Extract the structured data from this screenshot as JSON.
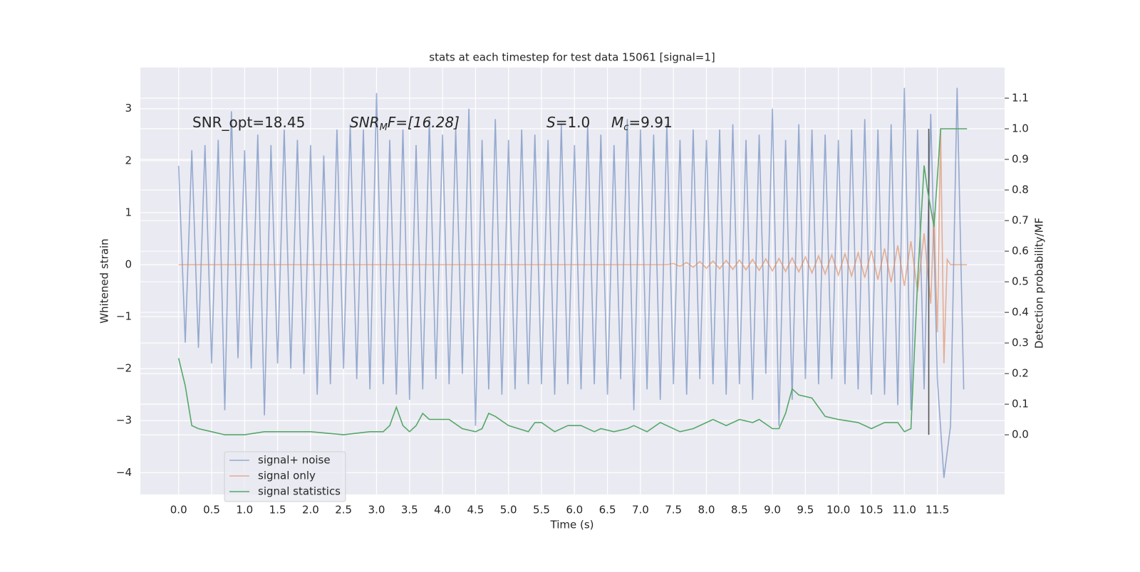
{
  "chart_data": {
    "type": "line",
    "title": "stats at each timestep for test data 15061 [signal=1]",
    "xlabel": "Time (s)",
    "ylabel": "Whitened strain",
    "y2label": "Detection probability/MF",
    "annotations": [
      [
        "SNR_opt=18.45"
      ],
      [
        "SNR",
        "M",
        "F=[16.28]"
      ],
      [
        "S",
        "=1.0"
      ],
      [
        "M",
        "c",
        "=9.91"
      ]
    ],
    "xlim": [
      -0.58,
      12.52
    ],
    "ylim": [
      -4.42,
      3.79
    ],
    "y2lim": [
      -0.195,
      1.2
    ],
    "xticks": [
      {
        "value": 0,
        "label": "0.0"
      },
      0.5,
      {
        "value": 1,
        "label": "1.0"
      },
      1.5,
      {
        "value": 2,
        "label": "2.0"
      },
      2.5,
      {
        "value": 3,
        "label": "3.0"
      },
      3.5,
      {
        "value": 4,
        "label": "4.0"
      },
      4.5,
      {
        "value": 5,
        "label": "5.0"
      },
      5.5,
      {
        "value": 6,
        "label": "6.0"
      },
      6.5,
      {
        "value": 7,
        "label": "7.0"
      },
      7.5,
      {
        "value": 8,
        "label": "8.0"
      },
      8.5,
      {
        "value": 9,
        "label": "9.0"
      },
      9.5,
      {
        "value": 10,
        "label": "10.0"
      },
      10.5,
      {
        "value": 11,
        "label": "11.0"
      },
      11.5
    ],
    "yticks": [
      {
        "value": -4,
        "label": "−4"
      },
      {
        "value": -3,
        "label": "−3"
      },
      {
        "value": -2,
        "label": "−2"
      },
      {
        "value": -1,
        "label": "−1"
      },
      0,
      1,
      2,
      3
    ],
    "y2ticks": [
      {
        "value": 0,
        "label": "0.0"
      },
      0.1,
      0.2,
      0.3,
      0.4,
      0.5,
      0.6,
      0.7,
      0.8,
      0.9,
      {
        "value": 1,
        "label": "1.0"
      },
      1.1
    ],
    "grid": true,
    "legend": "lower left",
    "series": [
      {
        "name": "signal+ noise",
        "color": "#4c72b0",
        "alpha": 0.55,
        "x": [
          0.0,
          0.1,
          0.2,
          0.3,
          0.4,
          0.5,
          0.6,
          0.7,
          0.8,
          0.9,
          1.0,
          1.1,
          1.2,
          1.3,
          1.4,
          1.5,
          1.6,
          1.7,
          1.8,
          1.9,
          2.0,
          2.1,
          2.2,
          2.3,
          2.4,
          2.5,
          2.6,
          2.7,
          2.8,
          2.9,
          3.0,
          3.1,
          3.2,
          3.3,
          3.4,
          3.5,
          3.6,
          3.7,
          3.8,
          3.9,
          4.0,
          4.1,
          4.2,
          4.3,
          4.4,
          4.5,
          4.6,
          4.7,
          4.8,
          4.9,
          5.0,
          5.1,
          5.2,
          5.3,
          5.4,
          5.5,
          5.6,
          5.7,
          5.8,
          5.9,
          6.0,
          6.1,
          6.2,
          6.3,
          6.4,
          6.5,
          6.6,
          6.7,
          6.8,
          6.9,
          7.0,
          7.1,
          7.2,
          7.3,
          7.4,
          7.5,
          7.6,
          7.7,
          7.8,
          7.9,
          8.0,
          8.1,
          8.2,
          8.3,
          8.4,
          8.5,
          8.6,
          8.7,
          8.8,
          8.9,
          9.0,
          9.1,
          9.2,
          9.3,
          9.4,
          9.5,
          9.6,
          9.7,
          9.8,
          9.9,
          10.0,
          10.1,
          10.2,
          10.3,
          10.4,
          10.5,
          10.6,
          10.7,
          10.8,
          10.9,
          11.0,
          11.1,
          11.2,
          11.3,
          11.4,
          11.5,
          11.6,
          11.7,
          11.8,
          11.9
        ],
        "values": [
          1.9,
          -1.5,
          2.2,
          -1.6,
          2.3,
          -1.9,
          2.4,
          -2.8,
          2.95,
          -1.8,
          2.2,
          -2.0,
          2.5,
          -2.9,
          2.3,
          -1.9,
          2.6,
          -2.0,
          2.4,
          -2.1,
          2.3,
          -2.5,
          2.1,
          -2.3,
          2.6,
          -2.0,
          2.7,
          -2.2,
          2.6,
          -2.4,
          3.3,
          -2.3,
          2.4,
          -2.5,
          2.6,
          -2.6,
          2.3,
          -2.4,
          2.8,
          -2.2,
          2.5,
          -2.3,
          2.6,
          -2.1,
          3.0,
          -3.1,
          2.4,
          -2.4,
          2.8,
          -2.5,
          2.4,
          -2.4,
          2.6,
          -2.3,
          2.5,
          -2.3,
          2.4,
          -2.5,
          2.7,
          -2.3,
          2.3,
          -2.4,
          2.7,
          -2.3,
          2.5,
          -2.5,
          2.3,
          -2.2,
          2.8,
          -2.8,
          2.6,
          -2.4,
          2.5,
          -2.6,
          2.7,
          -2.3,
          2.4,
          -2.5,
          2.6,
          -2.2,
          2.4,
          -2.3,
          2.6,
          -2.5,
          2.7,
          -2.3,
          2.4,
          -2.6,
          2.5,
          -2.1,
          3.0,
          -3.1,
          2.4,
          -2.6,
          2.7,
          -2.2,
          2.6,
          -2.3,
          2.5,
          -2.2,
          2.4,
          -2.3,
          2.6,
          -2.4,
          2.8,
          -2.5,
          2.6,
          -2.5,
          2.7,
          -2.7,
          3.4,
          -2.8,
          2.6,
          -2.4,
          2.9,
          -2.2,
          -4.1,
          -3.1,
          3.4,
          -2.4
        ]
      },
      {
        "name": "signal only",
        "color": "#dd8452",
        "alpha": 0.6,
        "x": [
          0,
          7.4,
          7.5,
          7.6,
          7.7,
          7.8,
          7.9,
          8.0,
          8.1,
          8.2,
          8.3,
          8.4,
          8.5,
          8.6,
          8.7,
          8.8,
          8.9,
          9.0,
          9.1,
          9.2,
          9.3,
          9.4,
          9.5,
          9.6,
          9.7,
          9.8,
          9.9,
          10.0,
          10.1,
          10.2,
          10.3,
          10.4,
          10.5,
          10.6,
          10.7,
          10.8,
          10.9,
          11.0,
          11.1,
          11.2,
          11.3,
          11.4,
          11.45,
          11.5,
          11.55,
          11.6,
          11.65,
          11.7,
          11.95
        ],
        "values": [
          0,
          0,
          0.02,
          -0.03,
          0.04,
          -0.05,
          0.06,
          -0.07,
          0.07,
          -0.08,
          0.08,
          -0.09,
          0.09,
          -0.1,
          0.1,
          -0.11,
          0.11,
          -0.12,
          0.12,
          -0.13,
          0.13,
          -0.14,
          0.15,
          -0.16,
          0.17,
          -0.18,
          0.19,
          -0.2,
          0.21,
          -0.22,
          0.23,
          -0.25,
          0.27,
          -0.29,
          0.31,
          -0.34,
          0.37,
          -0.41,
          0.45,
          -0.52,
          0.6,
          -0.75,
          1.0,
          -1.3,
          2.6,
          -1.9,
          0.1,
          0.0,
          0.0
        ]
      },
      {
        "name": "signal statistics",
        "color": "#55a868",
        "alpha": 1,
        "axis": "y2",
        "x": [
          0.0,
          0.1,
          0.2,
          0.3,
          0.5,
          0.7,
          1.0,
          1.3,
          1.5,
          1.7,
          2.0,
          2.5,
          2.9,
          3.1,
          3.2,
          3.3,
          3.4,
          3.5,
          3.6,
          3.7,
          3.8,
          4.0,
          4.1,
          4.3,
          4.5,
          4.6,
          4.7,
          4.8,
          5.0,
          5.3,
          5.4,
          5.5,
          5.7,
          5.9,
          6.1,
          6.3,
          6.4,
          6.6,
          6.8,
          6.9,
          7.1,
          7.3,
          7.4,
          7.6,
          7.8,
          8.0,
          8.1,
          8.3,
          8.5,
          8.7,
          8.8,
          9.0,
          9.1,
          9.2,
          9.3,
          9.4,
          9.6,
          9.7,
          9.8,
          10.0,
          10.3,
          10.5,
          10.7,
          10.9,
          11.0,
          11.1,
          11.2,
          11.3,
          11.35,
          11.45,
          11.55,
          11.6,
          11.95
        ],
        "values": [
          0.25,
          0.16,
          0.03,
          0.02,
          0.01,
          0.0,
          0.0,
          0.01,
          0.01,
          0.01,
          0.01,
          0.0,
          0.01,
          0.01,
          0.03,
          0.09,
          0.03,
          0.01,
          0.03,
          0.07,
          0.05,
          0.05,
          0.05,
          0.02,
          0.01,
          0.02,
          0.07,
          0.06,
          0.03,
          0.01,
          0.04,
          0.04,
          0.01,
          0.03,
          0.03,
          0.01,
          0.02,
          0.01,
          0.02,
          0.03,
          0.01,
          0.04,
          0.03,
          0.01,
          0.02,
          0.04,
          0.05,
          0.03,
          0.05,
          0.04,
          0.05,
          0.02,
          0.02,
          0.07,
          0.15,
          0.13,
          0.12,
          0.09,
          0.06,
          0.05,
          0.04,
          0.02,
          0.04,
          0.04,
          0.01,
          0.02,
          0.5,
          0.88,
          0.8,
          0.68,
          1.0,
          1.0,
          1.0
        ]
      }
    ],
    "vlines": [
      {
        "x": 11.37,
        "ymin": 0,
        "ymax": 1.0,
        "axis": "y2",
        "color": "#555555"
      }
    ]
  }
}
